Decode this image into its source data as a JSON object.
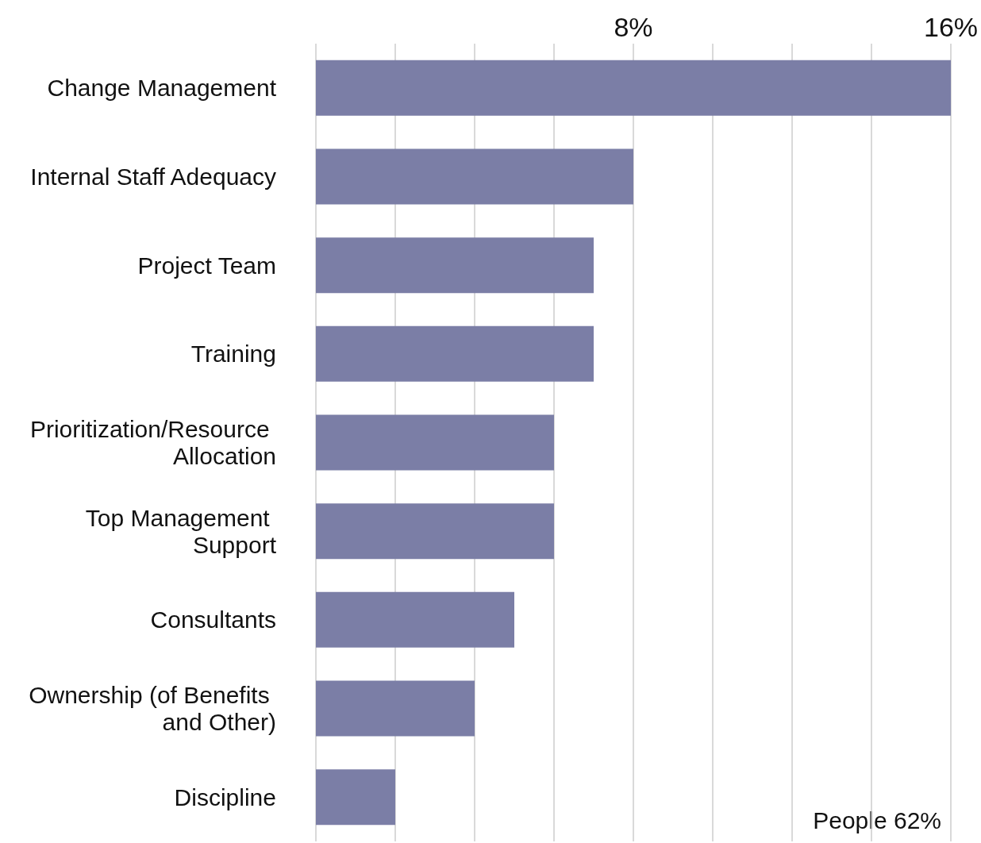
{
  "chart_data": {
    "type": "bar",
    "orientation": "horizontal",
    "categories": [
      "Change Management",
      "Internal Staff Adequacy",
      "Project Team",
      "Training",
      "Prioritization/Resource Allocation",
      "Top Management Support",
      "Consultants",
      "Ownership (of Benefits and Other)",
      "Discipline"
    ],
    "values": [
      16,
      8,
      7,
      7,
      6,
      6,
      5,
      4,
      2
    ],
    "color": "#7b7ea6",
    "xlim": [
      0,
      16
    ],
    "xticks": [
      {
        "value": 0,
        "label": null
      },
      {
        "value": 2,
        "label": null
      },
      {
        "value": 4,
        "label": null
      },
      {
        "value": 6,
        "label": null
      },
      {
        "value": 8,
        "label": "8%"
      },
      {
        "value": 10,
        "label": null
      },
      {
        "value": 12,
        "label": null
      },
      {
        "value": 14,
        "label": null
      },
      {
        "value": 16,
        "label": "16%"
      }
    ],
    "grid": "x",
    "annotations": [
      "People 62%"
    ]
  }
}
